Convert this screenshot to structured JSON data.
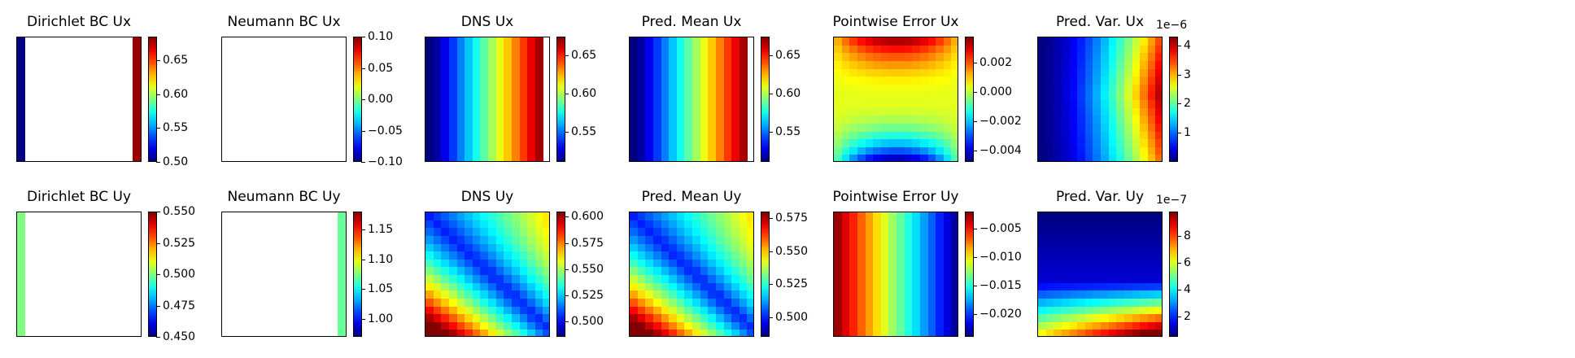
{
  "chart_data": [
    {
      "type": "heatmap",
      "title": "Dirichlet BC Ux",
      "pattern": "edges",
      "edge_values": [
        0.5,
        0.68
      ],
      "clim": [
        0.5,
        0.685
      ],
      "ticks": [
        "0.50",
        "0.55",
        "0.60",
        "0.65"
      ],
      "tick_values": [
        0.5,
        0.55,
        0.6,
        0.65
      ],
      "offset_label": ""
    },
    {
      "type": "heatmap",
      "title": "Neumann BC Ux",
      "pattern": "blank",
      "clim": [
        -0.1,
        0.1
      ],
      "ticks": [
        "−0.10",
        "−0.05",
        "0.00",
        "0.05",
        "0.10"
      ],
      "tick_values": [
        -0.1,
        -0.05,
        0,
        0.05,
        0.1
      ],
      "offset_label": ""
    },
    {
      "type": "heatmap",
      "title": "DNS Ux",
      "pattern": "xgrad",
      "range": [
        0.51,
        0.675
      ],
      "clim": [
        0.51,
        0.675
      ],
      "ticks": [
        "0.55",
        "0.60",
        "0.65"
      ],
      "tick_values": [
        0.55,
        0.6,
        0.65
      ],
      "offset_label": ""
    },
    {
      "type": "heatmap",
      "title": "Pred. Mean Ux",
      "pattern": "xgrad",
      "range": [
        0.51,
        0.675
      ],
      "clim": [
        0.51,
        0.675
      ],
      "ticks": [
        "0.55",
        "0.60",
        "0.65"
      ],
      "tick_values": [
        0.55,
        0.6,
        0.65
      ],
      "offset_label": ""
    },
    {
      "type": "heatmap",
      "title": "Pointwise Error Ux",
      "pattern": "ydiff",
      "range": [
        -0.0048,
        0.0038
      ],
      "clim": [
        -0.0048,
        0.0038
      ],
      "ticks": [
        "−0.004",
        "−0.002",
        "0.000",
        "0.002"
      ],
      "tick_values": [
        -0.004,
        -0.002,
        0,
        0.002
      ],
      "offset_label": ""
    },
    {
      "type": "heatmap",
      "title": "Pred. Var. Ux",
      "pattern": "varx",
      "range": [
        0.0,
        4.3
      ],
      "clim": [
        0.0,
        4.3
      ],
      "ticks": [
        "1",
        "2",
        "3",
        "4"
      ],
      "tick_values": [
        1,
        2,
        3,
        4
      ],
      "offset_label": "1e−6"
    },
    {
      "type": "heatmap",
      "title": "Dirichlet BC Uy",
      "pattern": "edgeleft",
      "edge_values": [
        0.5
      ],
      "clim": [
        0.45,
        0.55
      ],
      "ticks": [
        "0.450",
        "0.475",
        "0.500",
        "0.525",
        "0.550"
      ],
      "tick_values": [
        0.45,
        0.475,
        0.5,
        0.525,
        0.55
      ],
      "offset_label": ""
    },
    {
      "type": "heatmap",
      "title": "Neumann BC Uy",
      "pattern": "edgeright",
      "edge_values": [
        1.07
      ],
      "clim": [
        0.97,
        1.18
      ],
      "ticks": [
        "1.00",
        "1.05",
        "1.10",
        "1.15"
      ],
      "tick_values": [
        1.0,
        1.05,
        1.1,
        1.15
      ],
      "offset_label": ""
    },
    {
      "type": "heatmap",
      "title": "DNS Uy",
      "pattern": "diag",
      "range": [
        0.485,
        0.605
      ],
      "clim": [
        0.485,
        0.605
      ],
      "ticks": [
        "0.500",
        "0.525",
        "0.550",
        "0.575",
        "0.600"
      ],
      "tick_values": [
        0.5,
        0.525,
        0.55,
        0.575,
        0.6
      ],
      "offset_label": ""
    },
    {
      "type": "heatmap",
      "title": "Pred. Mean Uy",
      "pattern": "diag",
      "range": [
        0.485,
        0.58
      ],
      "clim": [
        0.485,
        0.58
      ],
      "ticks": [
        "0.500",
        "0.525",
        "0.550",
        "0.575"
      ],
      "tick_values": [
        0.5,
        0.525,
        0.55,
        0.575
      ],
      "offset_label": ""
    },
    {
      "type": "heatmap",
      "title": "Pointwise Error Uy",
      "pattern": "xdesc",
      "range": [
        -0.024,
        -0.002
      ],
      "clim": [
        -0.024,
        -0.002
      ],
      "ticks": [
        "−0.020",
        "−0.015",
        "−0.010",
        "−0.005"
      ],
      "tick_values": [
        -0.02,
        -0.015,
        -0.01,
        -0.005
      ],
      "offset_label": ""
    },
    {
      "type": "heatmap",
      "title": "Pred. Var. Uy",
      "pattern": "vary",
      "range": [
        0.5,
        9.8
      ],
      "clim": [
        0.5,
        9.8
      ],
      "ticks": [
        "2",
        "4",
        "6",
        "8"
      ],
      "tick_values": [
        2,
        4,
        6,
        8
      ],
      "offset_label": "1e−7"
    }
  ]
}
